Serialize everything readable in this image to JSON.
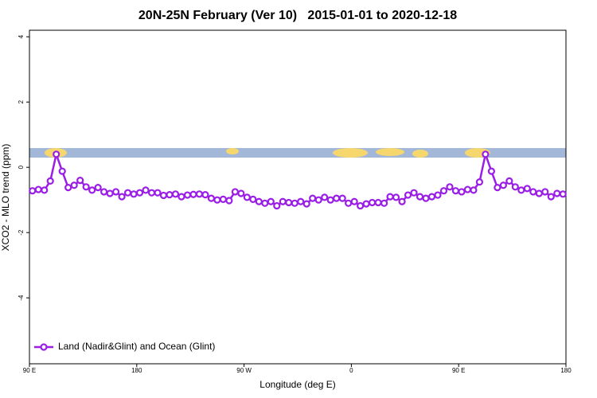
{
  "chart_data": {
    "type": "line",
    "title": "20N-25N February (Ver 10)   2015-01-01 to 2020-12-18",
    "x_label": "Longitude (deg E)",
    "y_label": "XCO2 - MLO trend (ppm)",
    "x": [
      92.5,
      97.5,
      102.5,
      107.5,
      112.5,
      117.5,
      122.5,
      127.5,
      132.5,
      137.5,
      142.5,
      147.5,
      152.5,
      157.5,
      162.5,
      167.5,
      172.5,
      177.5,
      182.5,
      187.5,
      192.5,
      197.5,
      202.5,
      207.5,
      212.5,
      217.5,
      222.5,
      227.5,
      232.5,
      237.5,
      242.5,
      247.5,
      252.5,
      257.5,
      262.5,
      267.5,
      272.5,
      277.5,
      282.5,
      287.5,
      292.5,
      297.5,
      302.5,
      307.5,
      312.5,
      317.5,
      322.5,
      327.5,
      332.5,
      337.5,
      342.5,
      347.5,
      352.5,
      357.5,
      362.5,
      367.5,
      372.5,
      377.5,
      382.5,
      387.5,
      392.5,
      397.5,
      402.5,
      407.5,
      412.5,
      417.5,
      422.5,
      427.5,
      432.5,
      437.5,
      442.5,
      447.5,
      452.5,
      457.5,
      462.5,
      467.5,
      472.5,
      477.5,
      482.5,
      487.5,
      492.5,
      497.5,
      502.5,
      507.5,
      512.5,
      517.5,
      522.5,
      527.5,
      532.5,
      537.5
    ],
    "series": [
      {
        "name": "Land (Nadir&Glint) and Ocean (Glint)",
        "color": "#9a1ee6",
        "values": [
          -0.72,
          -0.68,
          -0.7,
          -0.42,
          0.4,
          -0.12,
          -0.62,
          -0.55,
          -0.4,
          -0.6,
          -0.7,
          -0.62,
          -0.75,
          -0.8,
          -0.75,
          -0.9,
          -0.78,
          -0.82,
          -0.78,
          -0.7,
          -0.78,
          -0.78,
          -0.86,
          -0.84,
          -0.82,
          -0.9,
          -0.85,
          -0.83,
          -0.82,
          -0.84,
          -0.95,
          -1.0,
          -0.98,
          -1.02,
          -0.75,
          -0.8,
          -0.92,
          -0.98,
          -1.05,
          -1.1,
          -1.05,
          -1.18,
          -1.05,
          -1.08,
          -1.1,
          -1.05,
          -1.12,
          -0.95,
          -1.0,
          -0.92,
          -1.0,
          -0.95,
          -0.95,
          -1.1,
          -1.05,
          -1.18,
          -1.12,
          -1.08,
          -1.08,
          -1.1,
          -0.9,
          -0.92,
          -1.05,
          -0.85,
          -0.78,
          -0.9,
          -0.95,
          -0.9,
          -0.85,
          -0.72,
          -0.6,
          -0.72,
          -0.75,
          -0.68,
          -0.7,
          -0.45,
          0.4,
          -0.12,
          -0.62,
          -0.55,
          -0.42,
          -0.6,
          -0.7,
          -0.65,
          -0.75,
          -0.8,
          -0.75,
          -0.9,
          -0.8,
          -0.82
        ]
      }
    ],
    "xlim": [
      90,
      540
    ],
    "xticks": [
      {
        "value": 90,
        "label": "90 E"
      },
      180,
      {
        "value": 270,
        "label": "90 W"
      },
      {
        "value": 360,
        "label": "0"
      },
      {
        "value": 450,
        "label": "90 E"
      },
      {
        "value": 540,
        "label": "180"
      }
    ],
    "ylim": [
      -6.02,
      4.2
    ],
    "yticks": [
      4,
      2,
      0,
      -2,
      -4
    ],
    "legend": "bottom-left"
  }
}
